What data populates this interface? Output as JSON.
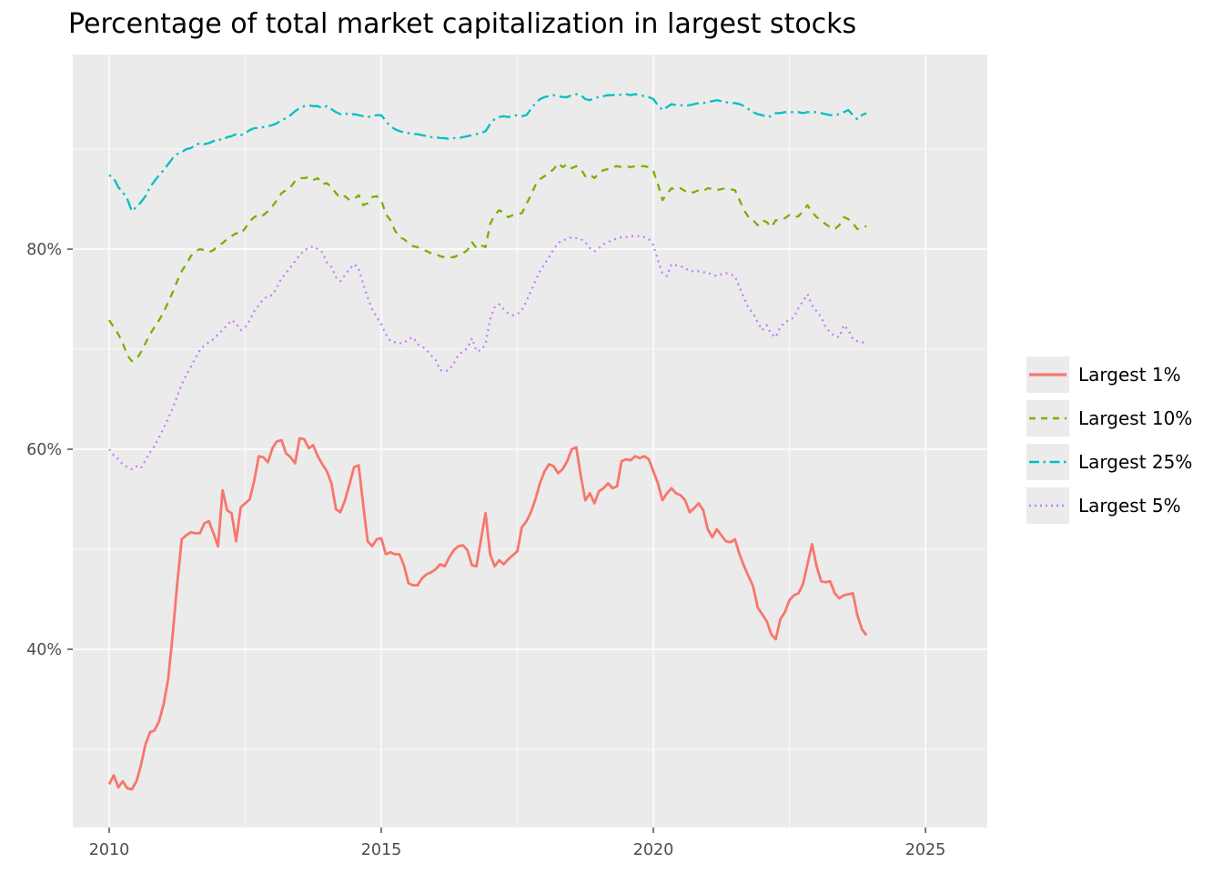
{
  "title": "Percentage of total market capitalization in largest stocks",
  "colors": {
    "page_bg": "#FFFFFF",
    "panel_bg": "#EBEBEB",
    "grid": "#FFFFFF",
    "tick_mark": "#333333",
    "tick_text": "#4D4D4D",
    "title_text": "#000000",
    "legend_key_bg": "#EBEBEB"
  },
  "chart_data": {
    "type": "line",
    "title": "Percentage of total market capitalization in largest stocks",
    "xlabel": "",
    "ylabel": "",
    "grid": true,
    "legend_position": "right",
    "x_ticks": [
      {
        "value": 2010,
        "label": "2010"
      },
      {
        "value": 2015,
        "label": "2015"
      },
      {
        "value": 2020,
        "label": "2020"
      },
      {
        "value": 2025,
        "label": "2025"
      }
    ],
    "y_ticks": [
      {
        "value": 40,
        "label": "40%"
      },
      {
        "value": 60,
        "label": "60%"
      },
      {
        "value": 80,
        "label": "80%"
      }
    ],
    "x_minor": [
      2012.5,
      2017.5,
      2022.5
    ],
    "y_minor": [
      30,
      50,
      70,
      90
    ],
    "xlim": [
      2009.33,
      2026.14
    ],
    "ylim": [
      22.6,
      99.5
    ],
    "x_start": 2010.0,
    "x_step": 0.0833333,
    "series": [
      {
        "name": "Largest 1%",
        "color": "#F8766D",
        "linetype": "solid",
        "values": [
          26.5,
          27.4,
          26.2,
          26.8,
          26.1,
          26.0,
          26.8,
          28.4,
          30.5,
          31.7,
          31.9,
          32.8,
          34.5,
          37.0,
          41.5,
          46.5,
          51.0,
          51.4,
          51.7,
          51.6,
          51.6,
          52.6,
          52.8,
          51.6,
          50.3,
          55.9,
          53.9,
          53.6,
          50.8,
          54.2,
          54.6,
          55.0,
          56.9,
          59.3,
          59.2,
          58.7,
          60.1,
          60.8,
          60.9,
          59.6,
          59.2,
          58.6,
          61.1,
          61.0,
          60.1,
          60.4,
          59.3,
          58.5,
          57.8,
          56.6,
          54.0,
          53.7,
          54.9,
          56.5,
          58.2,
          58.4,
          54.5,
          50.8,
          50.3,
          51.0,
          51.1,
          49.5,
          49.7,
          49.5,
          49.5,
          48.4,
          46.6,
          46.4,
          46.4,
          47.1,
          47.5,
          47.7,
          48.0,
          48.5,
          48.3,
          49.2,
          49.9,
          50.3,
          50.4,
          49.9,
          48.4,
          48.3,
          51.0,
          53.6,
          49.5,
          48.3,
          48.9,
          48.5,
          49.0,
          49.4,
          49.8,
          52.2,
          52.8,
          53.7,
          55.0,
          56.6,
          57.8,
          58.5,
          58.3,
          57.6,
          58.0,
          58.8,
          60.0,
          60.2,
          57.3,
          54.9,
          55.6,
          54.6,
          55.8,
          56.1,
          56.6,
          56.1,
          56.3,
          58.8,
          59.0,
          58.9,
          59.3,
          59.1,
          59.3,
          59.0,
          57.8,
          56.6,
          54.9,
          55.6,
          56.1,
          55.6,
          55.4,
          54.9,
          53.7,
          54.1,
          54.6,
          53.9,
          52.0,
          51.2,
          52.0,
          51.4,
          50.8,
          50.7,
          51.0,
          49.5,
          48.3,
          47.3,
          46.3,
          44.2,
          43.5,
          42.8,
          41.5,
          41.0,
          43.0,
          43.7,
          44.9,
          45.4,
          45.6,
          46.5,
          48.5,
          50.5,
          48.3,
          46.8,
          46.7,
          46.8,
          45.6,
          45.1,
          45.4,
          45.5,
          45.6,
          43.4,
          42.0,
          41.4
        ]
      },
      {
        "name": "Largest 10%",
        "color": "#7CAE00",
        "linetype": "dashed",
        "values": [
          72.9,
          72.2,
          71.5,
          70.6,
          69.4,
          68.8,
          69.0,
          69.7,
          70.6,
          71.5,
          72.2,
          72.9,
          73.7,
          74.7,
          75.7,
          76.8,
          77.8,
          78.5,
          79.3,
          79.8,
          80.0,
          79.9,
          79.7,
          79.9,
          80.4,
          80.6,
          81.0,
          81.3,
          81.6,
          81.5,
          82.1,
          82.8,
          83.2,
          83.5,
          83.4,
          83.8,
          84.3,
          84.9,
          85.6,
          85.9,
          86.2,
          86.8,
          87.1,
          87.1,
          87.2,
          86.9,
          87.1,
          86.5,
          86.6,
          86.2,
          85.6,
          85.1,
          85.3,
          84.9,
          85.0,
          85.4,
          84.4,
          84.6,
          85.2,
          85.3,
          84.9,
          83.5,
          82.9,
          81.9,
          81.2,
          81.0,
          80.6,
          80.3,
          80.2,
          80.0,
          79.8,
          79.6,
          79.5,
          79.3,
          79.2,
          79.2,
          79.2,
          79.4,
          79.6,
          79.9,
          80.7,
          80.1,
          80.4,
          80.2,
          82.5,
          83.4,
          83.9,
          83.6,
          83.2,
          83.4,
          83.5,
          83.6,
          84.5,
          85.4,
          86.4,
          87.0,
          87.3,
          87.6,
          88.0,
          88.6,
          88.2,
          88.5,
          88.1,
          88.3,
          88.0,
          87.3,
          87.5,
          87.1,
          87.6,
          87.9,
          88.0,
          88.2,
          88.3,
          88.2,
          88.3,
          88.2,
          88.3,
          88.3,
          88.3,
          88.2,
          87.8,
          86.5,
          84.9,
          85.5,
          86.1,
          85.9,
          86.1,
          85.8,
          85.6,
          85.7,
          85.9,
          85.8,
          86.1,
          86.0,
          85.9,
          86.0,
          86.1,
          86.0,
          85.9,
          84.9,
          83.9,
          83.2,
          82.9,
          82.4,
          82.9,
          82.7,
          82.2,
          82.9,
          82.9,
          83.1,
          83.4,
          83.2,
          83.3,
          83.8,
          84.4,
          83.7,
          83.2,
          82.9,
          82.5,
          82.2,
          82.0,
          82.4,
          83.2,
          83.0,
          82.6,
          82.0,
          82.2,
          82.3
        ]
      },
      {
        "name": "Largest 25%",
        "color": "#00BFC4",
        "linetype": "dotdash",
        "values": [
          87.4,
          87.1,
          86.2,
          85.7,
          85.0,
          83.8,
          84.2,
          84.7,
          85.3,
          86.2,
          86.8,
          87.4,
          87.9,
          88.5,
          89.1,
          89.5,
          89.7,
          90.0,
          90.1,
          90.4,
          90.6,
          90.5,
          90.6,
          90.8,
          91.0,
          90.9,
          91.2,
          91.3,
          91.5,
          91.4,
          91.6,
          91.9,
          92.1,
          92.1,
          92.2,
          92.3,
          92.4,
          92.6,
          92.9,
          93.1,
          93.4,
          93.8,
          94.1,
          94.3,
          94.4,
          94.3,
          94.3,
          94.1,
          94.3,
          94.0,
          93.7,
          93.5,
          93.6,
          93.4,
          93.5,
          93.4,
          93.3,
          93.2,
          93.3,
          93.4,
          93.4,
          92.8,
          92.3,
          92.0,
          91.8,
          91.7,
          91.6,
          91.5,
          91.5,
          91.4,
          91.3,
          91.2,
          91.2,
          91.1,
          91.1,
          91.0,
          91.1,
          91.1,
          91.2,
          91.3,
          91.4,
          91.5,
          91.6,
          91.8,
          92.5,
          93.0,
          93.2,
          93.3,
          93.2,
          93.3,
          93.4,
          93.3,
          93.4,
          94.0,
          94.6,
          95.0,
          95.2,
          95.3,
          95.4,
          95.3,
          95.2,
          95.2,
          95.4,
          95.5,
          95.4,
          95.0,
          94.9,
          95.1,
          95.2,
          95.3,
          95.4,
          95.4,
          95.5,
          95.4,
          95.5,
          95.4,
          95.5,
          95.4,
          95.3,
          95.2,
          95.0,
          94.4,
          93.9,
          94.2,
          94.5,
          94.4,
          94.4,
          94.3,
          94.4,
          94.5,
          94.6,
          94.6,
          94.7,
          94.8,
          94.9,
          94.8,
          94.7,
          94.6,
          94.6,
          94.5,
          94.3,
          94.0,
          93.7,
          93.5,
          93.4,
          93.2,
          93.3,
          93.6,
          93.6,
          93.7,
          93.7,
          93.7,
          93.7,
          93.6,
          93.7,
          93.7,
          93.7,
          93.6,
          93.5,
          93.4,
          93.4,
          93.5,
          93.7,
          93.9,
          93.4,
          93.0,
          93.4,
          93.6
        ]
      },
      {
        "name": "Largest 5%",
        "color": "#C77CFF",
        "linetype": "dotted",
        "values": [
          60.0,
          59.4,
          59.0,
          58.5,
          58.2,
          58.0,
          58.3,
          58.1,
          58.9,
          59.7,
          60.3,
          61.2,
          62.1,
          63.1,
          64.1,
          65.3,
          66.5,
          67.4,
          68.2,
          69.1,
          69.9,
          70.4,
          70.7,
          71.0,
          71.5,
          71.9,
          72.4,
          72.9,
          72.6,
          71.9,
          72.2,
          72.9,
          73.8,
          74.4,
          75.0,
          75.3,
          75.4,
          76.2,
          77.1,
          77.6,
          78.2,
          78.8,
          79.4,
          79.9,
          80.1,
          80.3,
          80.0,
          79.7,
          78.7,
          78.2,
          77.2,
          76.8,
          77.4,
          78.0,
          78.5,
          78.1,
          76.5,
          75.2,
          74.0,
          73.2,
          72.5,
          71.5,
          70.8,
          70.7,
          70.6,
          70.6,
          71.0,
          71.2,
          70.5,
          70.3,
          69.9,
          69.4,
          68.9,
          67.9,
          67.8,
          67.9,
          68.6,
          69.4,
          69.8,
          70.1,
          71.1,
          69.8,
          69.9,
          70.5,
          73.0,
          74.2,
          74.5,
          74.0,
          73.6,
          73.4,
          73.5,
          73.9,
          74.8,
          75.8,
          76.8,
          77.8,
          78.5,
          79.2,
          80.0,
          80.6,
          80.9,
          81.0,
          81.2,
          81.1,
          81.0,
          80.7,
          80.1,
          79.8,
          80.1,
          80.5,
          80.7,
          80.9,
          81.1,
          81.2,
          81.2,
          81.3,
          81.3,
          81.3,
          81.2,
          81.0,
          80.4,
          78.9,
          77.6,
          77.3,
          78.5,
          78.4,
          78.3,
          78.1,
          77.8,
          77.8,
          77.8,
          77.7,
          77.6,
          77.5,
          77.3,
          77.5,
          77.6,
          77.5,
          77.3,
          76.2,
          75.1,
          74.1,
          73.6,
          72.7,
          71.9,
          72.4,
          71.5,
          71.2,
          72.2,
          72.7,
          72.9,
          73.2,
          74.1,
          74.8,
          75.5,
          74.4,
          73.8,
          73.2,
          72.2,
          71.7,
          71.3,
          71.2,
          72.4,
          71.9,
          71.0,
          70.8,
          70.7,
          70.6
        ]
      }
    ]
  }
}
